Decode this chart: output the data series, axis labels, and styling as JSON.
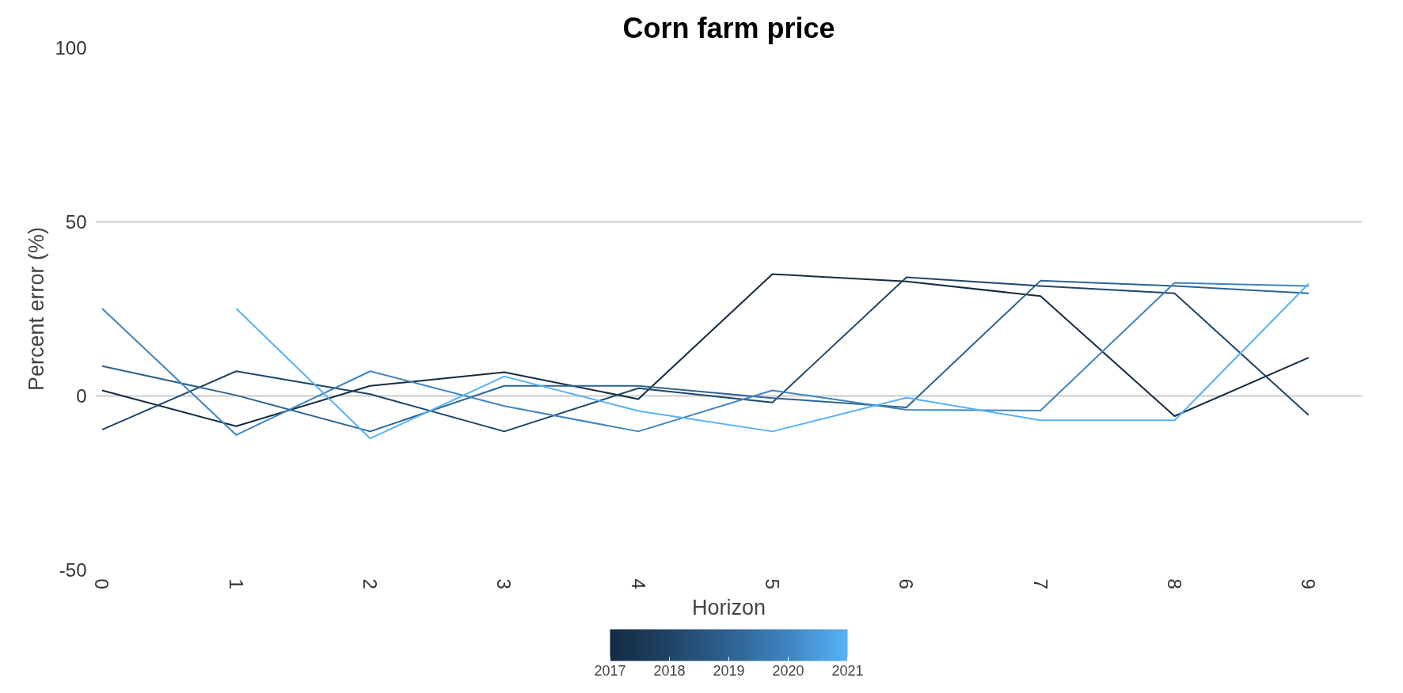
{
  "chart_data": {
    "type": "line",
    "title": "Corn farm price",
    "xlabel": "Horizon",
    "ylabel": "Percent error (%)",
    "x": [
      0,
      1,
      2,
      3,
      4,
      5,
      6,
      7,
      8,
      9
    ],
    "series": [
      {
        "color": "#132b43",
        "values": [
          1.6,
          -8.7,
          2.9,
          6.8,
          -0.9,
          35,
          32.9,
          28.7,
          -5.8,
          11
        ]
      },
      {
        "color": "#1f4566",
        "values": [
          -9.7,
          7.1,
          0.5,
          -10.2,
          2.2,
          -1.9,
          34.1,
          31.6,
          29.5,
          -5.5
        ]
      },
      {
        "color": "#2d6390",
        "values": [
          8.6,
          0.2,
          -10.2,
          2.9,
          2.9,
          -0.6,
          -3.3,
          33.1,
          31.6,
          29.5
        ]
      },
      {
        "color": "#3f84bf",
        "values": [
          25.1,
          -11.2,
          7.1,
          -2.9,
          -10.2,
          1.6,
          -4,
          -4.2,
          32.5,
          31.6
        ]
      },
      {
        "color": "#56b1f7",
        "values": [
          null,
          25.1,
          -12.2,
          5.6,
          -4.3,
          -10.2,
          -0.5,
          -7,
          -7,
          32.2
        ]
      }
    ],
    "xlim": [
      -0.05,
      9.4
    ],
    "ylim": [
      -50,
      100
    ],
    "xticks": [
      0,
      1,
      2,
      3,
      4,
      5,
      6,
      7,
      8,
      9
    ],
    "yticks": [
      -50,
      0,
      50,
      100
    ],
    "clim": [
      2017,
      2021
    ],
    "cticks": [
      2017,
      2018,
      2019,
      2020,
      2021
    ],
    "grid": "y",
    "line_style": "solid",
    "marker": "none"
  }
}
